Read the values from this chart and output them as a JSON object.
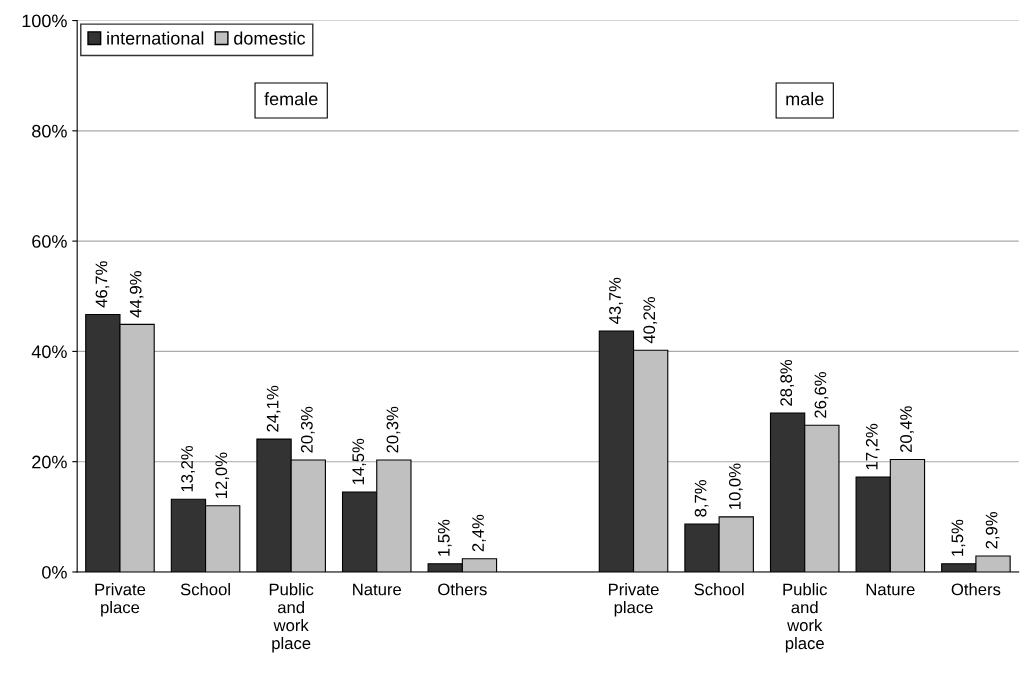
{
  "chart_data": {
    "type": "bar",
    "categories": [
      "Private place",
      "School",
      "Public and work place",
      "Nature",
      "Others",
      null,
      "Private place",
      "School",
      "Public and work place",
      "Nature",
      "Others"
    ],
    "series": [
      {
        "name": "international",
        "color": "#333333",
        "values": [
          46.7,
          13.2,
          24.1,
          14.5,
          1.5,
          null,
          43.7,
          8.7,
          28.8,
          17.2,
          1.5
        ],
        "value_labels": [
          "46,7%",
          "13,2%",
          "24,1%",
          "14,5%",
          "1,5%",
          null,
          "43,7%",
          "8,7%",
          "28,8%",
          "17,2%",
          "1,5%"
        ]
      },
      {
        "name": "domestic",
        "color": "#c0c0c0",
        "values": [
          44.9,
          12.0,
          20.3,
          20.3,
          2.4,
          null,
          40.2,
          10.0,
          26.6,
          20.4,
          2.9
        ],
        "value_labels": [
          "44,9%",
          "12,0%",
          "20,3%",
          "20,3%",
          "2,4%",
          null,
          "40,2%",
          "10,0%",
          "26,6%",
          "20,4%",
          "2,9%"
        ]
      }
    ],
    "annotations": [
      "female",
      "male"
    ],
    "ylim": [
      0,
      100
    ],
    "yticks": [
      {
        "value": 0,
        "label": "0%"
      },
      {
        "value": 20,
        "label": "20%"
      },
      {
        "value": 40,
        "label": "40%"
      },
      {
        "value": 60,
        "label": "60%"
      },
      {
        "value": 80,
        "label": "80%"
      },
      {
        "value": 100,
        "label": "100%"
      }
    ],
    "grid": "y",
    "legend": "top left"
  }
}
